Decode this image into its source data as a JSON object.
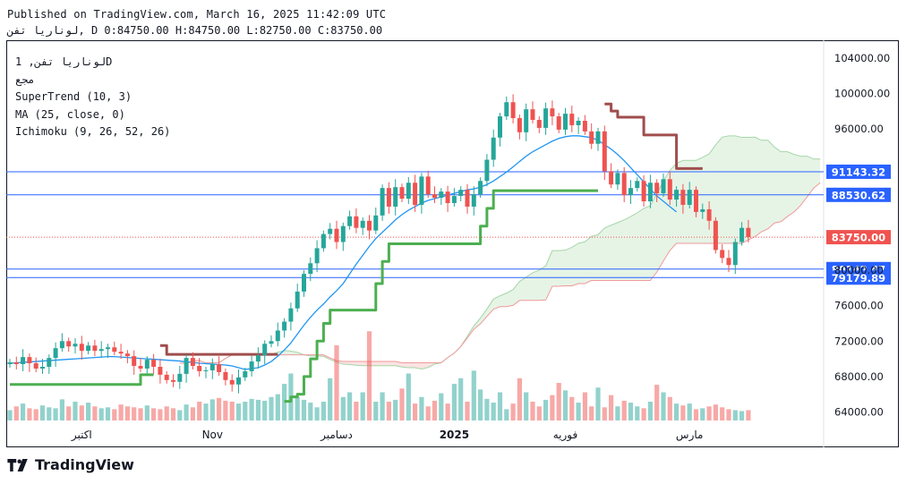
{
  "header": {
    "published": "Published on TradingView.com, March 16, 2025 11:42:09 UTC",
    "symbol": "لوناريا تفن",
    "interval": "D",
    "open": "0:84750.00",
    "high": "H:84750.00",
    "low": "L:82750.00",
    "close": "C:83750.00"
  },
  "legend": {
    "symbol_line": "لوناريا تفن, 1D",
    "subtitle": "مجع",
    "supertrend": "SuperTrend (10, 3)",
    "ma": "MA (25, close, 0)",
    "ichimoku": "Ichimoku (9, 26, 52, 26)"
  },
  "footer": {
    "brand": "TradingView",
    "logo_icon": "tradingview-logo-icon"
  },
  "chart_data": {
    "type": "candlestick",
    "y_axis": {
      "min": 60000,
      "max": 106000,
      "ticks": [
        64000,
        68000,
        72000,
        76000,
        80000,
        84000,
        88000,
        92000,
        96000,
        100000,
        104000
      ],
      "tick_labels": [
        "64000.00",
        "68000.00",
        "72000.00",
        "76000.00",
        "80000.00",
        "",
        "",
        "",
        "96000.00",
        "100000.00",
        "104000.00"
      ],
      "side": "right"
    },
    "x_axis": {
      "labels": [
        "اكتبر",
        "Nov",
        "دسامبر",
        "2025",
        "فوريه",
        "مارس"
      ],
      "label_index": [
        11,
        31,
        50,
        68,
        85,
        104
      ]
    },
    "horizontal_lines": [
      {
        "value": 91143.32,
        "label": "91143.32",
        "color": "#2962ff"
      },
      {
        "value": 88530.62,
        "label": "88530.62",
        "color": "#2962ff"
      },
      {
        "value": 80142.47,
        "label": "80142.47",
        "color": "#2962ff"
      },
      {
        "value": 79179.89,
        "label": "79179.89",
        "color": "#2962ff"
      }
    ],
    "last_price": {
      "value": 83750.0,
      "label": "83750.00",
      "color": "#ef5350"
    },
    "colors": {
      "up": "#26a69a",
      "down": "#ef5350",
      "supertrend_up": "#4caf50",
      "supertrend_down": "#a04d4d",
      "ma": "#2196f3",
      "cloud_up": "#a5d6a7",
      "cloud_down": "#ef9a9a"
    },
    "close": [
      69600,
      69400,
      70200,
      69500,
      68900,
      69100,
      70100,
      71200,
      72000,
      71400,
      71700,
      70900,
      71500,
      70900,
      71100,
      71300,
      70800,
      70600,
      70300,
      69200,
      68900,
      69900,
      69100,
      68200,
      67600,
      67400,
      68300,
      70100,
      69200,
      68600,
      68700,
      69400,
      68500,
      67600,
      67100,
      67900,
      68600,
      69700,
      70400,
      71700,
      72000,
      73200,
      74200,
      75700,
      77600,
      79600,
      80800,
      82500,
      84100,
      84700,
      83200,
      85000,
      86100,
      84800,
      85600,
      84500,
      86200,
      89300,
      87200,
      89400,
      88100,
      89900,
      87400,
      90600,
      88600,
      88200,
      88900,
      87600,
      88400,
      89100,
      87200,
      88600,
      90100,
      92500,
      95000,
      97400,
      99000,
      97200,
      95600,
      98200,
      97000,
      96100,
      98300,
      97400,
      95900,
      97700,
      96400,
      96900,
      95700,
      94300,
      95700,
      91200,
      89700,
      91000,
      88500,
      89300,
      90100,
      87800,
      89900,
      88700,
      90300,
      88000,
      89100,
      87400,
      89100,
      86600,
      86900,
      85600,
      82300,
      81400,
      80600,
      83200,
      84800,
      83750
    ],
    "supertrend": [
      67100,
      67100,
      67100,
      67100,
      67100,
      67100,
      67100,
      67100,
      67100,
      67100,
      67100,
      67100,
      67100,
      67100,
      67100,
      67100,
      67100,
      67100,
      67100,
      67100,
      68200,
      68200,
      68200,
      71500,
      70500,
      70500,
      70500,
      70500,
      70500,
      70500,
      70500,
      70500,
      70500,
      70500,
      70500,
      70500,
      70500,
      70500,
      70500,
      70500,
      70500,
      70500,
      65200,
      65700,
      66000,
      68000,
      70000,
      72000,
      74000,
      75500,
      75500,
      75500,
      75500,
      75500,
      75500,
      75500,
      78500,
      81000,
      83000,
      83000,
      83000,
      83000,
      83000,
      83000,
      83000,
      83000,
      83000,
      83000,
      83000,
      83000,
      83000,
      83000,
      85000,
      87000,
      89000,
      89000,
      89000,
      89000,
      89000,
      89000,
      89000,
      89000,
      89000,
      89000,
      89000,
      89000,
      89000,
      89000,
      89000,
      89000,
      89000,
      98800,
      98000,
      97300,
      97300,
      97300,
      97300,
      95300,
      95300,
      95300,
      95300,
      95300,
      91500,
      91500,
      91500,
      91500,
      91500
    ],
    "supertrend_down_from": 91,
    "ma": [
      69500,
      69550,
      69600,
      69650,
      69700,
      69750,
      69800,
      69850,
      69900,
      69950,
      70000,
      70050,
      70100,
      70150,
      70200,
      70250,
      70250,
      70200,
      70150,
      70100,
      70050,
      70000,
      69950,
      69900,
      69850,
      69800,
      69750,
      69650,
      69600,
      69500,
      69450,
      69400,
      69350,
      69300,
      69200,
      69000,
      68800,
      68900,
      69000,
      69300,
      69700,
      70300,
      71000,
      71800,
      72800,
      73800,
      74700,
      75500,
      76200,
      77000,
      77700,
      78500,
      79600,
      80700,
      81700,
      82700,
      83600,
      84300,
      85000,
      85700,
      86300,
      86800,
      87200,
      87600,
      87900,
      88100,
      88300,
      88500,
      88700,
      88900,
      89100,
      89200,
      89400,
      89700,
      90100,
      90600,
      91100,
      91700,
      92300,
      92900,
      93400,
      93800,
      94200,
      94600,
      94900,
      95100,
      95200,
      95200,
      95100,
      95000,
      94700,
      94200,
      93700,
      93100,
      92400,
      91600,
      90800,
      90000,
      89200,
      88400,
      87800,
      87200,
      86600
    ],
    "volume": [
      2.2,
      3.0,
      3.6,
      2.6,
      2.4,
      3.2,
      2.8,
      2.6,
      4.5,
      3.0,
      4.0,
      3.2,
      3.8,
      3.0,
      2.6,
      2.8,
      2.4,
      3.4,
      3.0,
      2.8,
      2.6,
      3.2,
      2.6,
      2.4,
      3.0,
      2.6,
      2.2,
      3.4,
      2.8,
      4.0,
      3.6,
      4.5,
      4.8,
      4.2,
      4.0,
      3.6,
      4.0,
      4.6,
      4.4,
      4.2,
      5.0,
      5.6,
      7.8,
      10.0,
      5.0,
      4.4,
      3.8,
      2.8,
      4.0,
      9.0,
      16.0,
      5.0,
      6.0,
      4.0,
      6.0,
      19.0,
      4.0,
      6.0,
      4.0,
      4.4,
      6.8,
      10.0,
      3.6,
      5.0,
      3.0,
      4.2,
      5.8,
      3.6,
      7.8,
      9.0,
      4.0,
      10.6,
      6.6,
      4.6,
      3.8,
      6.0,
      2.4,
      3.6,
      9.0,
      6.0,
      4.0,
      3.0,
      4.4,
      5.4,
      8.0,
      6.4,
      5.0,
      3.8,
      6.0,
      3.0,
      7.0,
      2.8,
      5.4,
      3.0,
      4.2,
      3.8,
      3.0,
      2.6,
      4.0,
      7.6,
      6.0,
      5.0,
      3.6,
      3.2,
      3.6,
      2.4,
      2.6,
      3.0,
      3.4,
      2.8,
      2.4,
      2.2,
      2.0,
      2.2
    ],
    "series": [
      {
        "name": "SuperTrend (10, 3)"
      },
      {
        "name": "MA (25, close, 0)"
      },
      {
        "name": "Ichimoku (9, 26, 52, 26)"
      }
    ]
  }
}
